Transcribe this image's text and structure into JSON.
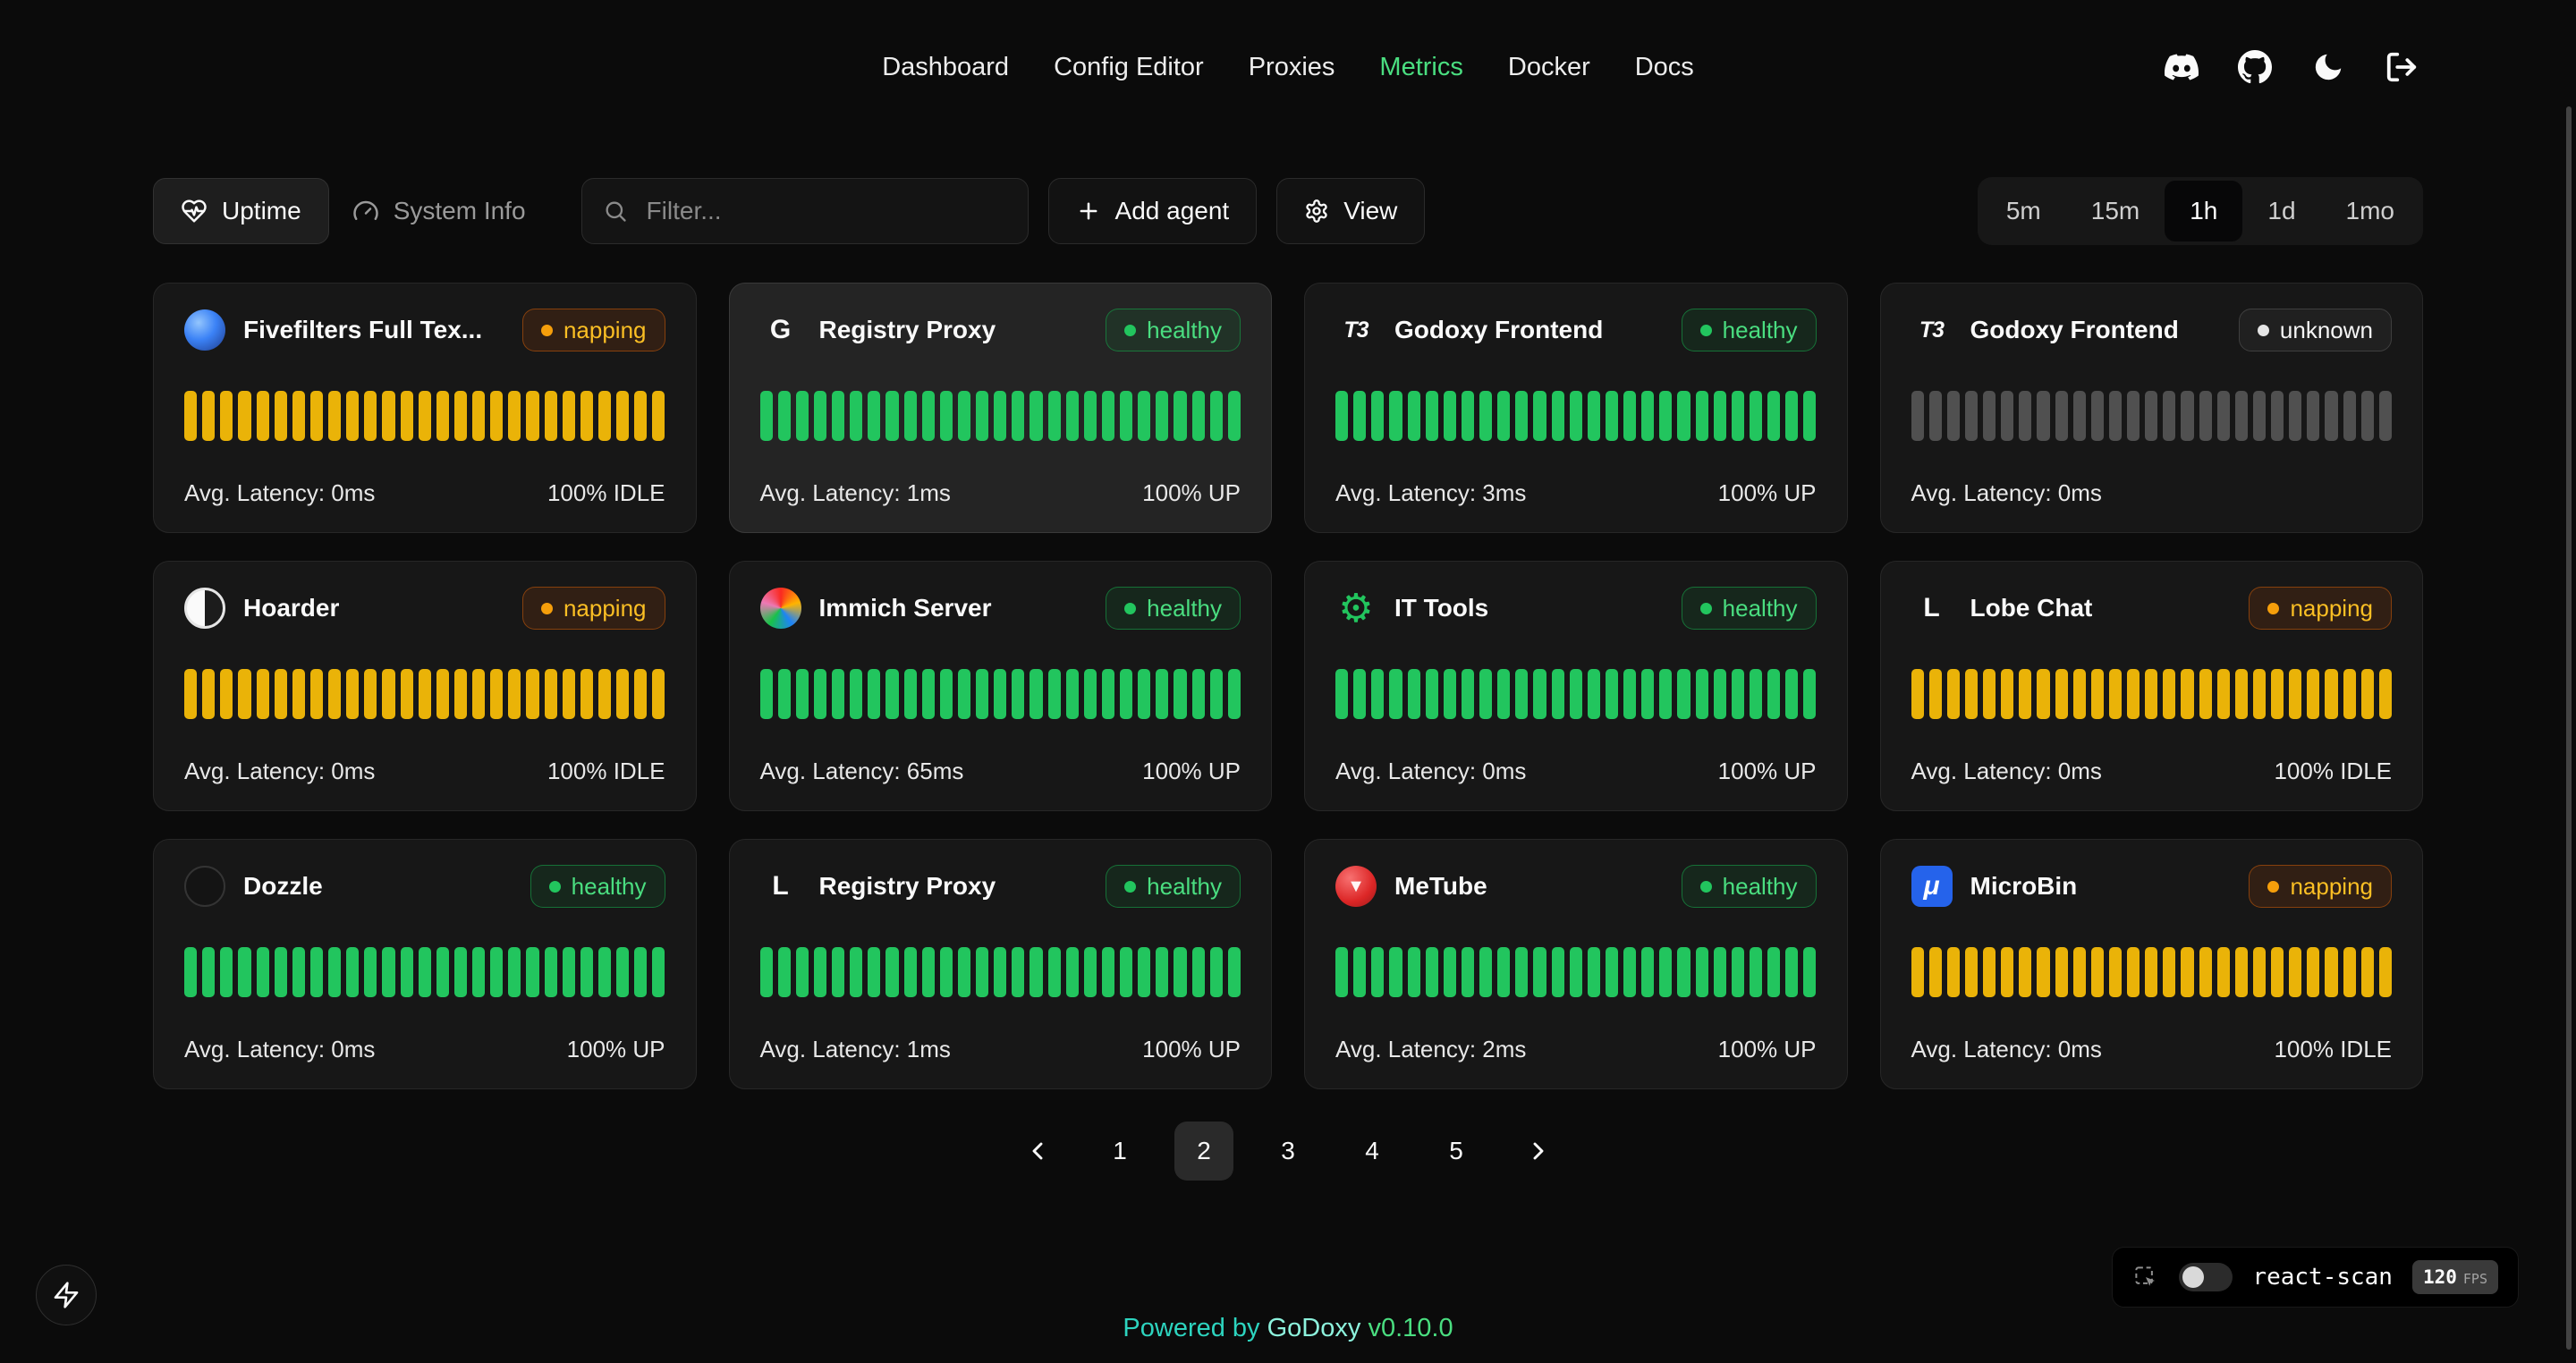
{
  "nav": {
    "items": [
      {
        "label": "Dashboard",
        "active": false
      },
      {
        "label": "Config Editor",
        "active": false
      },
      {
        "label": "Proxies",
        "active": false
      },
      {
        "label": "Metrics",
        "active": true
      },
      {
        "label": "Docker",
        "active": false
      },
      {
        "label": "Docs",
        "active": false
      }
    ],
    "header_icons": [
      "discord",
      "github",
      "dark-mode",
      "logout"
    ]
  },
  "toolbar": {
    "uptime_tab": "Uptime",
    "system_info_tab": "System Info",
    "filter_placeholder": "Filter...",
    "add_agent_label": "Add agent",
    "view_label": "View",
    "ranges": [
      {
        "label": "5m",
        "active": false
      },
      {
        "label": "15m",
        "active": false
      },
      {
        "label": "1h",
        "active": true
      },
      {
        "label": "1d",
        "active": false
      },
      {
        "label": "1mo",
        "active": false
      }
    ]
  },
  "cards": [
    {
      "name": "Fivefilters Full Tex...",
      "status": "napping",
      "latency": "Avg. Latency: 0ms",
      "uptime": "100% IDLE",
      "highlight": false,
      "icon": {
        "name": "fivefilters-favicon",
        "text": "",
        "style": {
          "background": "radial-gradient(circle at 35% 32%, #93c5fd 0%, #3b82f6 45%, #1e3a8a 100%)",
          "border-radius": "50%"
        }
      },
      "bars": {
        "count": 27,
        "color": "#eab308"
      }
    },
    {
      "name": "Registry Proxy",
      "status": "healthy",
      "latency": "Avg. Latency: 1ms",
      "uptime": "100% UP",
      "highlight": true,
      "icon": {
        "name": "registry-proxy-favicon",
        "text": "G",
        "style": {
          "color": "#fafafa"
        }
      },
      "bars": {
        "count": 27,
        "color": "#22c55e"
      }
    },
    {
      "name": "Godoxy Frontend",
      "status": "healthy",
      "latency": "Avg. Latency: 3ms",
      "uptime": "100% UP",
      "highlight": false,
      "icon": {
        "name": "godoxy-favicon",
        "text": "T3",
        "style": {
          "color": "#fafafa",
          "font-size": "25px",
          "font-style": "italic",
          "letter-spacing": "-1px"
        }
      },
      "bars": {
        "count": 27,
        "color": "#22c55e"
      }
    },
    {
      "name": "Godoxy Frontend",
      "status": "unknown",
      "latency": "Avg. Latency: 0ms",
      "uptime": "",
      "highlight": false,
      "icon": {
        "name": "godoxy-favicon",
        "text": "T3",
        "style": {
          "color": "#fafafa",
          "font-size": "25px",
          "font-style": "italic",
          "letter-spacing": "-1px"
        }
      },
      "bars": {
        "count": 27,
        "color": "#505050"
      }
    },
    {
      "name": "Hoarder",
      "status": "napping",
      "latency": "Avg. Latency: 0ms",
      "uptime": "100% IDLE",
      "highlight": false,
      "icon": {
        "name": "hoarder-favicon",
        "text": "",
        "style": {
          "background": "linear-gradient(90deg, #fafafa 50%, #1c1c1c 50%)",
          "border": "3px solid #e5e5e5",
          "border-radius": "50%"
        }
      },
      "bars": {
        "count": 27,
        "color": "#eab308"
      }
    },
    {
      "name": "Immich Server",
      "status": "healthy",
      "latency": "Avg. Latency: 65ms",
      "uptime": "100% UP",
      "highlight": false,
      "icon": {
        "name": "immich-favicon",
        "text": "",
        "style": {
          "background": "conic-gradient(from 0deg, #fa2921, #ffb400, #1e83f7, #18c249, #ed79b5, #fa2921)",
          "border-radius": "50%"
        }
      },
      "bars": {
        "count": 27,
        "color": "#22c55e"
      }
    },
    {
      "name": "IT Tools",
      "status": "healthy",
      "latency": "Avg. Latency: 0ms",
      "uptime": "100% UP",
      "highlight": false,
      "icon": {
        "name": "it-tools-favicon",
        "text": "⚙",
        "style": {
          "color": "#22c55e",
          "font-size": "44px",
          "font-weight": "400"
        }
      },
      "bars": {
        "count": 27,
        "color": "#22c55e"
      }
    },
    {
      "name": "Lobe Chat",
      "status": "napping",
      "latency": "Avg. Latency: 0ms",
      "uptime": "100% IDLE",
      "highlight": false,
      "icon": {
        "name": "lobe-chat-favicon",
        "text": "L",
        "style": {
          "color": "#fafafa"
        }
      },
      "bars": {
        "count": 27,
        "color": "#eab308"
      }
    },
    {
      "name": "Dozzle",
      "status": "healthy",
      "latency": "Avg. Latency: 0ms",
      "uptime": "100% UP",
      "highlight": false,
      "icon": {
        "name": "dozzle-favicon",
        "text": "",
        "style": {
          "background": "#141414",
          "border": "2px solid #343434",
          "border-radius": "50%"
        }
      },
      "bars": {
        "count": 27,
        "color": "#22c55e"
      }
    },
    {
      "name": "Registry Proxy",
      "status": "healthy",
      "latency": "Avg. Latency: 1ms",
      "uptime": "100% UP",
      "highlight": false,
      "icon": {
        "name": "registry-proxy-favicon",
        "text": "L",
        "style": {
          "color": "#fafafa"
        }
      },
      "bars": {
        "count": 27,
        "color": "#22c55e"
      }
    },
    {
      "name": "MeTube",
      "status": "healthy",
      "latency": "Avg. Latency: 2ms",
      "uptime": "100% UP",
      "highlight": false,
      "icon": {
        "name": "metube-favicon",
        "text": "▼",
        "style": {
          "background": "radial-gradient(circle at 35% 30%, #f87171, #dc2626 60%, #991b1b)",
          "color": "#fff5f5",
          "font-size": "20px",
          "border-radius": "50%"
        }
      },
      "bars": {
        "count": 27,
        "color": "#22c55e"
      }
    },
    {
      "name": "MicroBin",
      "status": "napping",
      "latency": "Avg. Latency: 0ms",
      "uptime": "100% IDLE",
      "highlight": false,
      "icon": {
        "name": "microbin-favicon",
        "text": "μ",
        "style": {
          "background": "#2563eb",
          "color": "#ffffff",
          "font-style": "italic",
          "font-size": "30px",
          "border-radius": "10px"
        }
      },
      "bars": {
        "count": 27,
        "color": "#eab308"
      }
    }
  ],
  "pagination": {
    "pages": [
      {
        "label": "1",
        "active": false
      },
      {
        "label": "2",
        "active": true
      },
      {
        "label": "3",
        "active": false
      },
      {
        "label": "4",
        "active": false
      },
      {
        "label": "5",
        "active": false
      }
    ]
  },
  "react_scan": {
    "label": "react-scan",
    "fps": "120",
    "fps_unit": "FPS"
  },
  "footer": {
    "powered_by": "Powered by",
    "brand": "GoDoxy",
    "version": "v0.10.0"
  },
  "colors": {
    "healthy": "#22c55e",
    "napping": "#eab308",
    "unknown": "#505050",
    "accent_green": "#4ade80"
  }
}
